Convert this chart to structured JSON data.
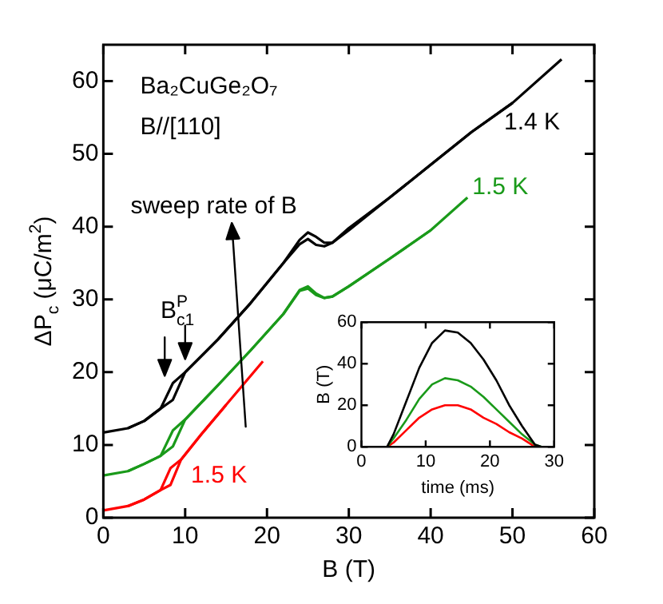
{
  "chart_data": [
    {
      "type": "line",
      "xlabel": "B (T)",
      "ylabel": "ΔP$_{c}$ (μC/m$^{2}$)",
      "xlim": [
        0,
        60
      ],
      "ylim": [
        0,
        65
      ],
      "xticks": [
        0,
        10,
        20,
        30,
        40,
        50,
        60
      ],
      "yticks": [
        0,
        10,
        20,
        30,
        40,
        50,
        60
      ],
      "grid": false,
      "legend": false,
      "marker": "none",
      "line_style": "solid",
      "annotations": [
        "Ba₂CuGe₂O₇",
        "B//[110]",
        "sweep rate of B",
        "B$_{c1}$$^{P}$"
      ],
      "series": [
        {
          "name": "1.4 K",
          "color": "#000000",
          "x": [
            0,
            3,
            5,
            7,
            8.5,
            10,
            14,
            18,
            22,
            24,
            25,
            26,
            27,
            28,
            30,
            35,
            40,
            45,
            50,
            56
          ],
          "values": [
            11.7,
            12.3,
            13.3,
            15,
            16.2,
            20,
            24.5,
            29.5,
            35,
            38.2,
            39.2,
            38.6,
            37.8,
            37.8,
            39.5,
            44,
            48.5,
            53,
            57,
            63
          ]
        },
        {
          "color": "#000000",
          "x": [
            3,
            5,
            7,
            8.5,
            10,
            14,
            18,
            22,
            24,
            25,
            26,
            27,
            28,
            30,
            35,
            40,
            45,
            50
          ],
          "values": [
            12.3,
            13.3,
            15,
            18.5,
            20,
            24.5,
            29.5,
            35,
            37.6,
            38.3,
            37.5,
            37.3,
            37.8,
            39.8,
            44,
            48.5,
            53,
            57
          ]
        },
        {
          "name": "1.5 K",
          "color": "#1a9a1a",
          "x": [
            0,
            3,
            5,
            7,
            8.5,
            10,
            14,
            18,
            22,
            24,
            25,
            26,
            27,
            28,
            30,
            35,
            40,
            44.5
          ],
          "values": [
            5.8,
            6.4,
            7.4,
            8.5,
            9.8,
            13.5,
            18.2,
            23,
            28,
            31.3,
            31.8,
            30.8,
            30.2,
            30.4,
            31.8,
            35.6,
            39.5,
            44
          ]
        },
        {
          "color": "#1a9a1a",
          "x": [
            3,
            5,
            7,
            8.5,
            10,
            14,
            18,
            22,
            24,
            25,
            26,
            27,
            28,
            30,
            35,
            40
          ],
          "values": [
            6.4,
            7.4,
            8.5,
            12,
            13.5,
            18.2,
            23,
            28,
            31.2,
            31.5,
            30.6,
            30.2,
            30.4,
            31.8,
            35.6,
            39.5
          ]
        },
        {
          "name": "1.5 K",
          "color": "#ff0000",
          "x": [
            0,
            3,
            5,
            7,
            8.2,
            9.5,
            12,
            15,
            19.5
          ],
          "values": [
            1,
            1.6,
            2.5,
            3.8,
            4.5,
            8,
            11.5,
            15.5,
            21.5
          ]
        },
        {
          "color": "#ff0000",
          "x": [
            3,
            5,
            7,
            8.2,
            9.5,
            12,
            15
          ],
          "values": [
            1.6,
            2.5,
            3.8,
            6.8,
            8,
            11.5,
            15.5
          ]
        }
      ]
    },
    {
      "type": "line",
      "xlabel": "time (ms)",
      "ylabel": "B (T)",
      "xlim": [
        0,
        30
      ],
      "ylim": [
        0,
        60
      ],
      "xticks": [
        0,
        10,
        20,
        30
      ],
      "yticks": [
        0,
        20,
        40,
        60
      ],
      "grid": false,
      "legend": false,
      "marker": "none",
      "line_style": "solid",
      "series": [
        {
          "color": "#000000",
          "x": [
            0,
            2,
            4,
            5,
            7,
            9,
            11,
            13,
            15,
            17,
            19,
            21,
            23,
            25,
            27,
            28,
            30
          ],
          "values": [
            0,
            0,
            0,
            6,
            22,
            38,
            50,
            56,
            55,
            50,
            42,
            32,
            20,
            10,
            1,
            0,
            0
          ]
        },
        {
          "color": "#1a9a1a",
          "x": [
            0,
            2,
            4,
            5,
            7,
            9,
            11,
            13,
            15,
            17,
            19,
            21,
            23,
            25,
            27,
            28,
            30
          ],
          "values": [
            0,
            0,
            0,
            4,
            13,
            23,
            30,
            33,
            32,
            29,
            24,
            18,
            12,
            6,
            1,
            0,
            0
          ]
        },
        {
          "color": "#ff0000",
          "x": [
            0,
            2,
            4,
            5,
            7,
            9,
            11,
            13,
            15,
            17,
            19,
            21,
            23,
            25,
            27,
            28,
            30
          ],
          "values": [
            0,
            0,
            0,
            2,
            8,
            14,
            18,
            20,
            20,
            18,
            14,
            11,
            7,
            4,
            0,
            0,
            0
          ]
        }
      ]
    }
  ]
}
